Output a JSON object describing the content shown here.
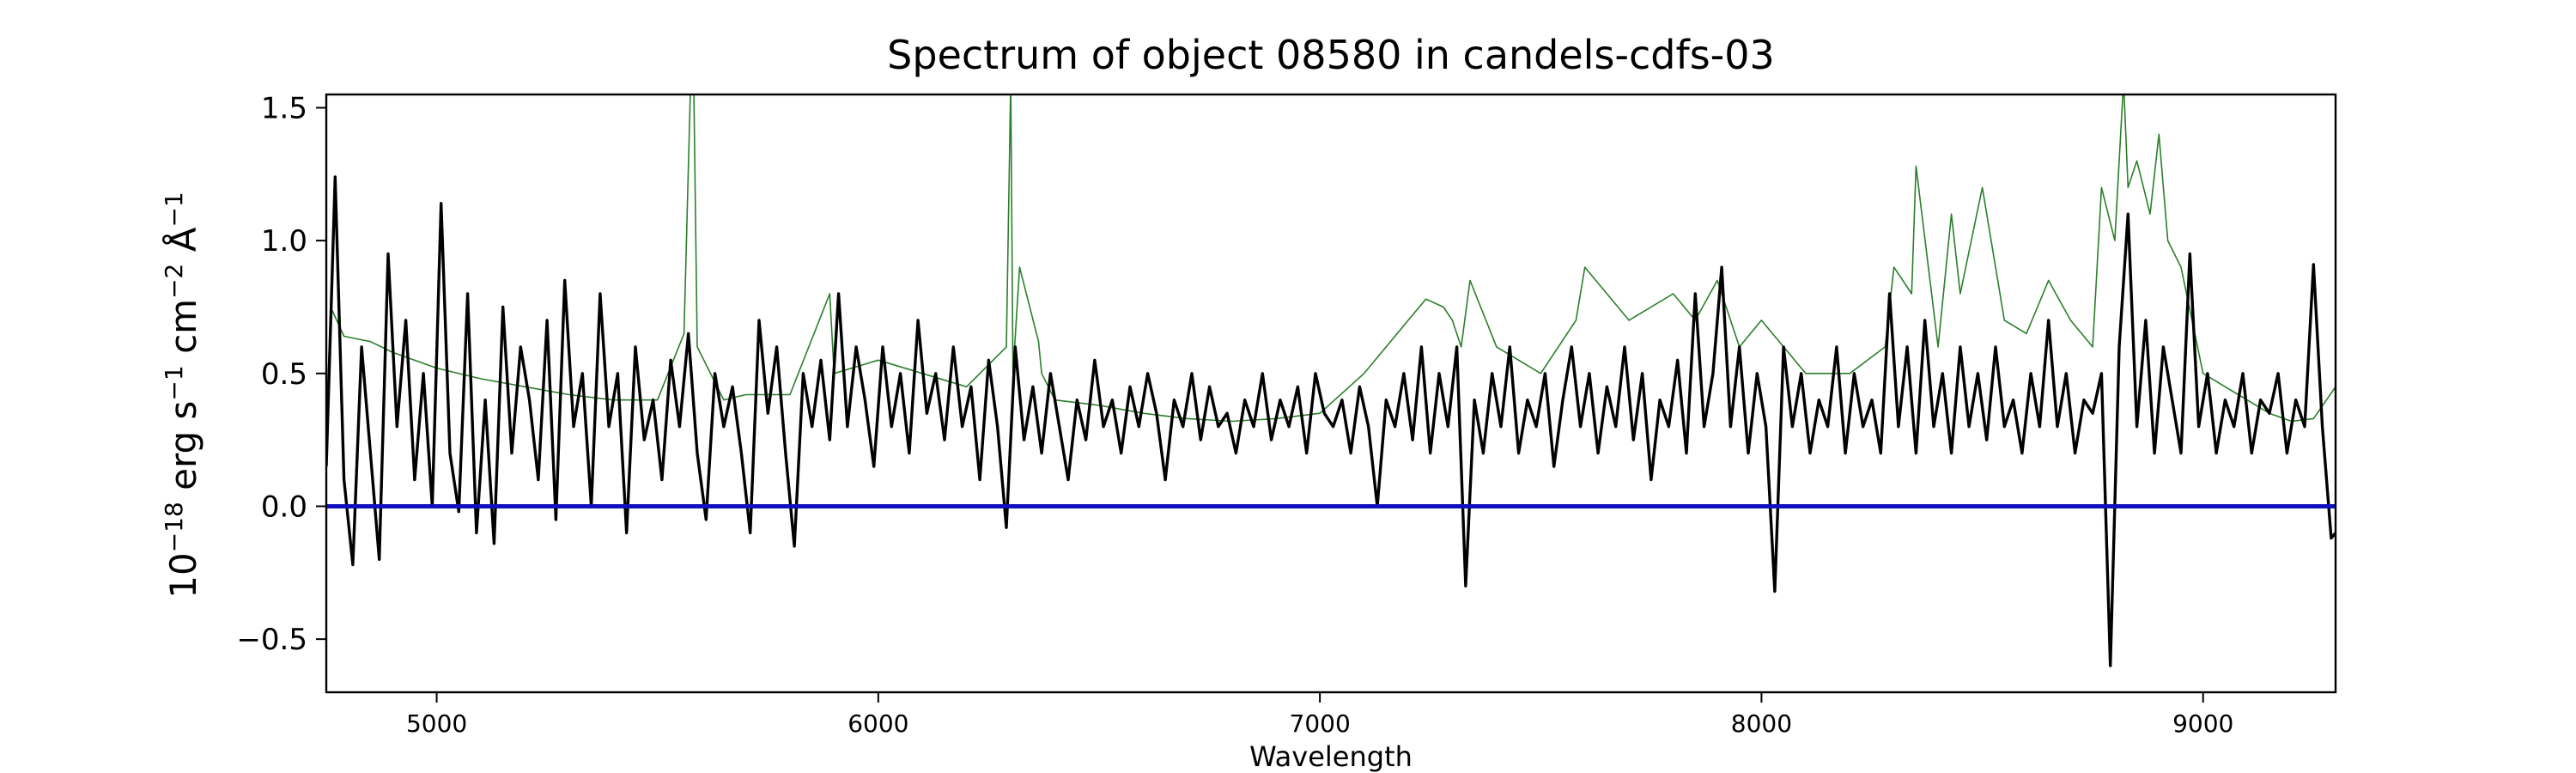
{
  "chart_data": {
    "type": "line",
    "title": "Spectrum of object 08580 in candels-cdfs-03",
    "xlabel": "Wavelength",
    "ylabel": {
      "base": "10",
      "exp": "−18",
      "unit1": " erg s",
      "exp1": "−1",
      "unit2": " cm",
      "exp2": "−2",
      "unit3": " Å",
      "exp3": "−1"
    },
    "xlim": [
      4750,
      9300
    ],
    "ylim": [
      -0.7,
      1.55
    ],
    "xticks": [
      5000,
      6000,
      7000,
      8000,
      9000
    ],
    "xtick_labels": [
      "5000",
      "6000",
      "7000",
      "8000",
      "9000"
    ],
    "yticks": [
      -0.5,
      0.0,
      0.5,
      1.0,
      1.5
    ],
    "ytick_labels": [
      "−0.5",
      "0.0",
      "0.5",
      "1.0",
      "1.5"
    ],
    "grid": false,
    "series": [
      {
        "role": "error",
        "color": "#2a7f2a",
        "x": [
          4750,
          4760,
          4790,
          4820,
          4850,
          4900,
          5000,
          5100,
          5200,
          5300,
          5400,
          5500,
          5560,
          5575,
          5578,
          5582,
          5590,
          5650,
          5700,
          5800,
          5890,
          5900,
          6000,
          6100,
          6200,
          6290,
          6300,
          6305,
          6320,
          6363,
          6370,
          6400,
          6500,
          6600,
          6700,
          6800,
          6900,
          7000,
          7100,
          7200,
          7240,
          7280,
          7300,
          7320,
          7340,
          7400,
          7500,
          7580,
          7600,
          7700,
          7800,
          7850,
          7900,
          7950,
          8000,
          8100,
          8200,
          8280,
          8300,
          8340,
          8350,
          8400,
          8430,
          8450,
          8500,
          8550,
          8600,
          8650,
          8700,
          8750,
          8770,
          8800,
          8820,
          8830,
          8850,
          8880,
          8900,
          8920,
          8950,
          9000,
          9050,
          9100,
          9150,
          9200,
          9250,
          9300
        ],
        "y": [
          0.3,
          0.75,
          0.64,
          0.63,
          0.62,
          0.58,
          0.52,
          0.48,
          0.45,
          0.42,
          0.4,
          0.4,
          0.65,
          1.6,
          1.6,
          1.6,
          0.6,
          0.4,
          0.42,
          0.42,
          0.8,
          0.5,
          0.55,
          0.5,
          0.45,
          0.6,
          1.6,
          0.5,
          0.9,
          0.62,
          0.5,
          0.4,
          0.38,
          0.35,
          0.33,
          0.32,
          0.33,
          0.35,
          0.5,
          0.7,
          0.78,
          0.75,
          0.7,
          0.6,
          0.85,
          0.6,
          0.5,
          0.7,
          0.9,
          0.7,
          0.8,
          0.7,
          0.85,
          0.6,
          0.7,
          0.5,
          0.5,
          0.6,
          0.9,
          0.8,
          1.28,
          0.6,
          1.1,
          0.8,
          1.2,
          0.7,
          0.65,
          0.85,
          0.7,
          0.6,
          1.2,
          1.0,
          1.6,
          1.2,
          1.3,
          1.1,
          1.4,
          1.0,
          0.9,
          0.5,
          0.45,
          0.4,
          0.35,
          0.32,
          0.33,
          0.45
        ]
      },
      {
        "role": "flux",
        "color": "#000000",
        "x": [
          4750,
          4770,
          4790,
          4810,
          4830,
          4850,
          4870,
          4890,
          4910,
          4930,
          4950,
          4970,
          4990,
          5010,
          5030,
          5050,
          5070,
          5090,
          5110,
          5130,
          5150,
          5170,
          5190,
          5210,
          5230,
          5250,
          5270,
          5290,
          5310,
          5330,
          5350,
          5370,
          5390,
          5410,
          5430,
          5450,
          5470,
          5490,
          5510,
          5530,
          5550,
          5570,
          5590,
          5610,
          5630,
          5650,
          5670,
          5690,
          5710,
          5730,
          5750,
          5770,
          5790,
          5810,
          5830,
          5850,
          5870,
          5890,
          5910,
          5930,
          5950,
          5970,
          5990,
          6010,
          6030,
          6050,
          6070,
          6090,
          6110,
          6130,
          6150,
          6170,
          6190,
          6210,
          6230,
          6250,
          6270,
          6290,
          6310,
          6330,
          6350,
          6370,
          6390,
          6410,
          6430,
          6450,
          6470,
          6490,
          6510,
          6530,
          6550,
          6570,
          6590,
          6610,
          6630,
          6650,
          6670,
          6690,
          6710,
          6730,
          6750,
          6770,
          6790,
          6810,
          6830,
          6850,
          6870,
          6890,
          6910,
          6930,
          6950,
          6970,
          6990,
          7010,
          7030,
          7050,
          7070,
          7090,
          7110,
          7130,
          7150,
          7170,
          7190,
          7210,
          7230,
          7250,
          7270,
          7290,
          7310,
          7330,
          7350,
          7370,
          7390,
          7410,
          7430,
          7450,
          7470,
          7490,
          7510,
          7530,
          7550,
          7570,
          7590,
          7610,
          7630,
          7650,
          7670,
          7690,
          7710,
          7730,
          7750,
          7770,
          7790,
          7810,
          7830,
          7850,
          7870,
          7890,
          7910,
          7930,
          7950,
          7970,
          7990,
          8010,
          8030,
          8050,
          8070,
          8090,
          8110,
          8130,
          8150,
          8170,
          8190,
          8210,
          8230,
          8250,
          8270,
          8290,
          8310,
          8330,
          8350,
          8370,
          8390,
          8410,
          8430,
          8450,
          8470,
          8490,
          8510,
          8530,
          8550,
          8570,
          8590,
          8610,
          8630,
          8650,
          8670,
          8690,
          8710,
          8730,
          8750,
          8770,
          8790,
          8810,
          8830,
          8850,
          8870,
          8890,
          8910,
          8930,
          8950,
          8970,
          8990,
          9010,
          9030,
          9050,
          9070,
          9090,
          9110,
          9130,
          9150,
          9170,
          9190,
          9210,
          9230,
          9250,
          9270,
          9290,
          9300
        ],
        "y": [
          0.15,
          1.24,
          0.1,
          -0.22,
          0.6,
          0.2,
          -0.2,
          0.95,
          0.3,
          0.7,
          0.1,
          0.5,
          0.0,
          1.14,
          0.2,
          -0.02,
          0.8,
          -0.1,
          0.4,
          -0.14,
          0.75,
          0.2,
          0.6,
          0.4,
          0.1,
          0.7,
          -0.05,
          0.85,
          0.3,
          0.5,
          0.0,
          0.8,
          0.3,
          0.5,
          -0.1,
          0.6,
          0.25,
          0.4,
          0.1,
          0.55,
          0.3,
          0.65,
          0.2,
          -0.05,
          0.5,
          0.3,
          0.45,
          0.2,
          -0.1,
          0.7,
          0.35,
          0.6,
          0.2,
          -0.15,
          0.5,
          0.3,
          0.55,
          0.25,
          0.8,
          0.3,
          0.6,
          0.4,
          0.15,
          0.6,
          0.3,
          0.5,
          0.2,
          0.7,
          0.35,
          0.5,
          0.25,
          0.6,
          0.3,
          0.45,
          0.1,
          0.55,
          0.3,
          -0.08,
          0.6,
          0.25,
          0.45,
          0.2,
          0.5,
          0.3,
          0.1,
          0.4,
          0.25,
          0.55,
          0.3,
          0.4,
          0.2,
          0.45,
          0.3,
          0.5,
          0.35,
          0.1,
          0.4,
          0.3,
          0.5,
          0.25,
          0.45,
          0.3,
          0.35,
          0.2,
          0.4,
          0.3,
          0.5,
          0.25,
          0.4,
          0.3,
          0.45,
          0.2,
          0.5,
          0.35,
          0.3,
          0.4,
          0.2,
          0.45,
          0.3,
          0.0,
          0.4,
          0.3,
          0.5,
          0.25,
          0.6,
          0.2,
          0.5,
          0.3,
          0.6,
          -0.3,
          0.4,
          0.2,
          0.5,
          0.3,
          0.6,
          0.2,
          0.4,
          0.3,
          0.5,
          0.15,
          0.4,
          0.6,
          0.3,
          0.5,
          0.2,
          0.45,
          0.3,
          0.6,
          0.25,
          0.5,
          0.1,
          0.4,
          0.3,
          0.55,
          0.2,
          0.8,
          0.3,
          0.5,
          0.9,
          0.3,
          0.6,
          0.2,
          0.5,
          0.3,
          -0.32,
          0.6,
          0.3,
          0.5,
          0.2,
          0.4,
          0.3,
          0.6,
          0.2,
          0.5,
          0.3,
          0.4,
          0.2,
          0.8,
          0.3,
          0.6,
          0.2,
          0.7,
          0.3,
          0.5,
          0.2,
          0.6,
          0.3,
          0.5,
          0.25,
          0.6,
          0.3,
          0.4,
          0.2,
          0.5,
          0.3,
          0.7,
          0.3,
          0.5,
          0.2,
          0.4,
          0.35,
          0.5,
          -0.6,
          0.6,
          1.1,
          0.3,
          0.7,
          0.2,
          0.6,
          0.4,
          0.2,
          0.95,
          0.3,
          0.5,
          0.2,
          0.4,
          0.3,
          0.5,
          0.2,
          0.4,
          0.35,
          0.5,
          0.2,
          0.4,
          0.3,
          0.91,
          0.3,
          -0.12,
          -0.1
        ]
      },
      {
        "role": "zero",
        "color": "#1010c0",
        "x": [
          4750,
          9300
        ],
        "y": [
          0.0,
          0.0
        ]
      }
    ]
  }
}
